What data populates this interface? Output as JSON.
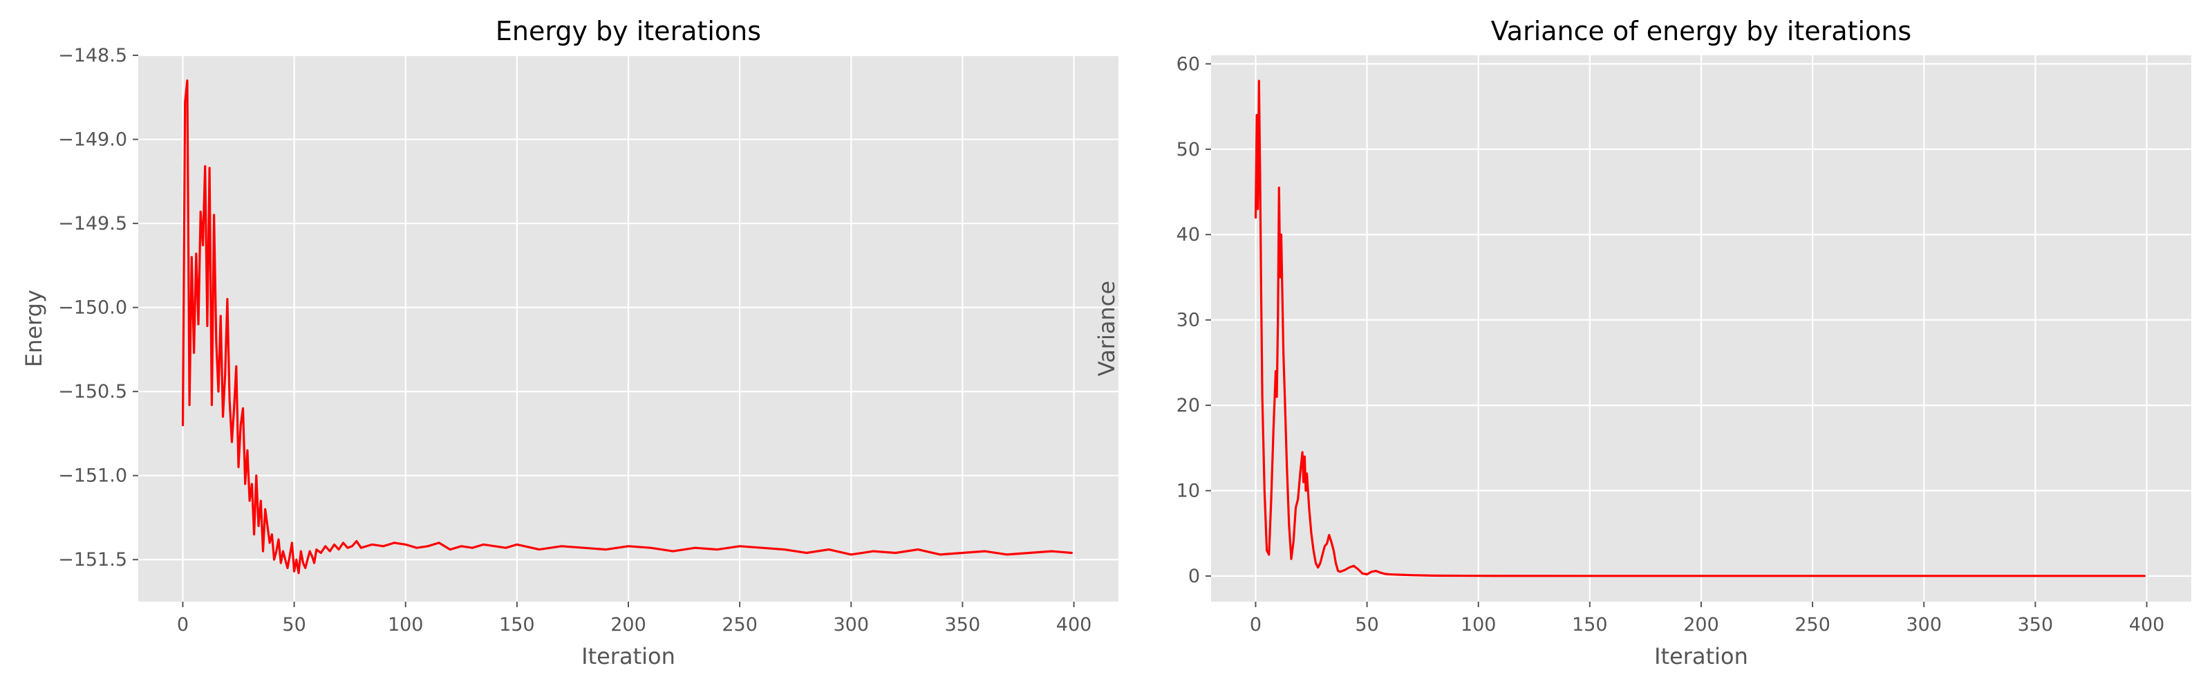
{
  "chart_data": [
    {
      "type": "line",
      "title": "Energy by iterations",
      "xlabel": "Iteration",
      "ylabel": "Energy",
      "xlim": [
        -20,
        420
      ],
      "ylim": [
        -151.75,
        -148.5
      ],
      "xticks": [
        0,
        50,
        100,
        150,
        200,
        250,
        300,
        350,
        400
      ],
      "yticks": [
        -151.5,
        -151.0,
        -150.5,
        -150.0,
        -149.5,
        -149.0,
        -148.5
      ],
      "xtick_labels": [
        "0",
        "50",
        "100",
        "150",
        "200",
        "250",
        "300",
        "350",
        "400"
      ],
      "ytick_labels": [
        "−151.5",
        "−151.0",
        "−150.5",
        "−150.0",
        "−149.5",
        "−149.0",
        "−148.5"
      ],
      "grid": true,
      "style": "ggplot",
      "series": [
        {
          "color": "#ff0000",
          "x": [
            0,
            1,
            2,
            3,
            4,
            5,
            6,
            7,
            8,
            9,
            10,
            11,
            12,
            13,
            14,
            15,
            16,
            17,
            18,
            19,
            20,
            21,
            22,
            23,
            24,
            25,
            26,
            27,
            28,
            29,
            30,
            31,
            32,
            33,
            34,
            35,
            36,
            37,
            38,
            39,
            40,
            41,
            42,
            43,
            44,
            45,
            46,
            47,
            48,
            49,
            50,
            51,
            52,
            53,
            54,
            55,
            56,
            57,
            58,
            59,
            60,
            62,
            64,
            66,
            68,
            70,
            72,
            74,
            76,
            78,
            80,
            85,
            90,
            95,
            100,
            105,
            110,
            115,
            120,
            125,
            130,
            135,
            140,
            145,
            150,
            160,
            170,
            180,
            190,
            200,
            210,
            220,
            230,
            240,
            250,
            260,
            270,
            280,
            290,
            300,
            310,
            320,
            330,
            340,
            350,
            360,
            370,
            380,
            390,
            399
          ],
          "y": [
            -150.7,
            -148.78,
            -148.65,
            -150.58,
            -149.7,
            -150.27,
            -149.68,
            -150.1,
            -149.43,
            -149.63,
            -149.16,
            -150.11,
            -149.17,
            -150.58,
            -149.45,
            -150.2,
            -150.5,
            -150.05,
            -150.65,
            -150.4,
            -149.95,
            -150.55,
            -150.8,
            -150.6,
            -150.35,
            -150.95,
            -150.7,
            -150.6,
            -151.05,
            -150.85,
            -151.15,
            -151.05,
            -151.35,
            -151.0,
            -151.3,
            -151.15,
            -151.45,
            -151.2,
            -151.3,
            -151.4,
            -151.35,
            -151.5,
            -151.45,
            -151.38,
            -151.52,
            -151.45,
            -151.5,
            -151.55,
            -151.48,
            -151.4,
            -151.57,
            -151.5,
            -151.58,
            -151.45,
            -151.52,
            -151.55,
            -151.5,
            -151.45,
            -151.48,
            -151.52,
            -151.44,
            -151.46,
            -151.42,
            -151.45,
            -151.41,
            -151.44,
            -151.4,
            -151.43,
            -151.42,
            -151.39,
            -151.43,
            -151.41,
            -151.42,
            -151.4,
            -151.41,
            -151.43,
            -151.42,
            -151.4,
            -151.44,
            -151.42,
            -151.43,
            -151.41,
            -151.42,
            -151.43,
            -151.41,
            -151.44,
            -151.42,
            -151.43,
            -151.44,
            -151.42,
            -151.43,
            -151.45,
            -151.43,
            -151.44,
            -151.42,
            -151.43,
            -151.44,
            -151.46,
            -151.44,
            -151.47,
            -151.45,
            -151.46,
            -151.44,
            -151.47,
            -151.46,
            -151.45,
            -151.47,
            -151.46,
            -151.45,
            -151.46
          ]
        }
      ]
    },
    {
      "type": "line",
      "title": "Variance of energy by iterations",
      "xlabel": "Iteration",
      "ylabel": "Variance",
      "xlim": [
        -20,
        420
      ],
      "ylim": [
        -3,
        61
      ],
      "xticks": [
        0,
        50,
        100,
        150,
        200,
        250,
        300,
        350,
        400
      ],
      "yticks": [
        0,
        10,
        20,
        30,
        40,
        50,
        60
      ],
      "xtick_labels": [
        "0",
        "50",
        "100",
        "150",
        "200",
        "250",
        "300",
        "350",
        "400"
      ],
      "ytick_labels": [
        "0",
        "10",
        "20",
        "30",
        "40",
        "50",
        "60"
      ],
      "grid": true,
      "style": "ggplot",
      "series": [
        {
          "color": "#ff0000",
          "x": [
            0,
            0.5,
            1,
            1.5,
            2,
            2.5,
            3,
            4,
            5,
            6,
            7,
            8,
            9,
            9.5,
            10,
            10.5,
            11,
            11.5,
            12,
            12.5,
            13,
            14,
            15,
            16,
            17,
            18,
            19,
            20,
            21,
            21.5,
            22,
            22.5,
            23,
            24,
            25,
            26,
            27,
            28,
            29,
            30,
            31,
            32,
            33,
            34,
            35,
            36,
            37,
            38,
            40,
            42,
            44,
            46,
            48,
            50,
            52,
            54,
            56,
            58,
            60,
            65,
            70,
            80,
            100,
            150,
            200,
            250,
            300,
            350,
            399
          ],
          "y": [
            42,
            54,
            43,
            58,
            47,
            33,
            21,
            10,
            3,
            2.5,
            9,
            17,
            24,
            21,
            30,
            45.5,
            35,
            40,
            33,
            26,
            22,
            13,
            6,
            2,
            4,
            8,
            9,
            12,
            14.5,
            11,
            14,
            10,
            12,
            8,
            5,
            3,
            1.5,
            1,
            1.5,
            2.5,
            3.5,
            3.8,
            4.8,
            4,
            3,
            1.5,
            0.6,
            0.5,
            0.7,
            1,
            1.2,
            0.8,
            0.3,
            0.2,
            0.5,
            0.6,
            0.4,
            0.25,
            0.2,
            0.15,
            0.1,
            0.05,
            0.02,
            0.01,
            0.01,
            0.01,
            0.01,
            0.01,
            0.01
          ]
        }
      ]
    }
  ]
}
